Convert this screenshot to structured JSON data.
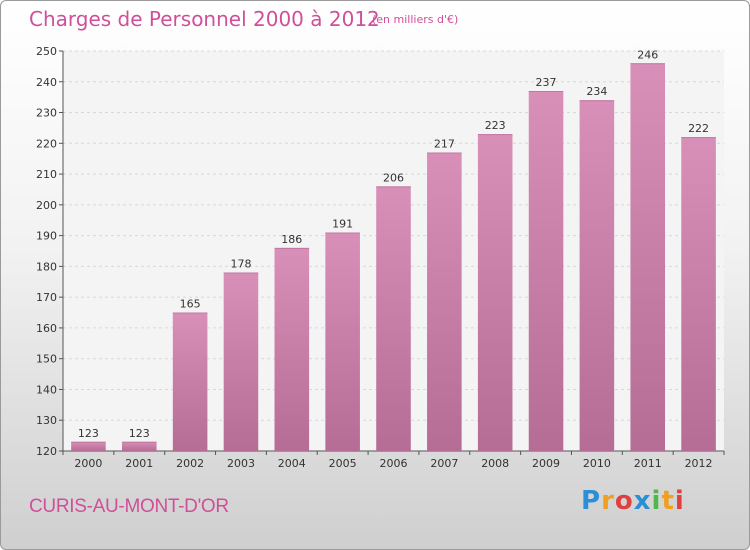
{
  "header": {
    "title": "Charges de Personnel 2000 à 2012",
    "unit": "(en milliers d'€)"
  },
  "footer": {
    "city": "CURIS-AU-MONT-D'OR",
    "logo_letters": [
      "P",
      "r",
      "o",
      "x",
      "i",
      "t",
      "i"
    ],
    "logo_colors": [
      "#2a8fd6",
      "#f0a020",
      "#e04040",
      "#2a8fd6",
      "#50b848",
      "#f0a020",
      "#e04040"
    ]
  },
  "colors": {
    "bar": "#d88fb8",
    "bar_dark": "#b56d96",
    "title": "#d04f9a"
  },
  "chart_data": {
    "type": "bar",
    "title": "Charges de Personnel 2000 à 2012",
    "subtitle": "(en milliers d'€)",
    "categories": [
      "2000",
      "2001",
      "2002",
      "2003",
      "2004",
      "2005",
      "2006",
      "2007",
      "2008",
      "2009",
      "2010",
      "2011",
      "2012"
    ],
    "values": [
      123,
      123,
      165,
      178,
      186,
      191,
      206,
      217,
      223,
      237,
      234,
      246,
      222
    ],
    "data_labels": [
      "123",
      "123",
      "165",
      "178",
      "186",
      "191",
      "206",
      "217",
      "223",
      "237",
      "234",
      "246",
      "222"
    ],
    "yticks": [
      "120",
      "130",
      "140",
      "150",
      "160",
      "170",
      "180",
      "190",
      "200",
      "210",
      "220",
      "230",
      "240",
      "250"
    ],
    "ylim": [
      120,
      250
    ],
    "grid": true,
    "legend": "none"
  }
}
